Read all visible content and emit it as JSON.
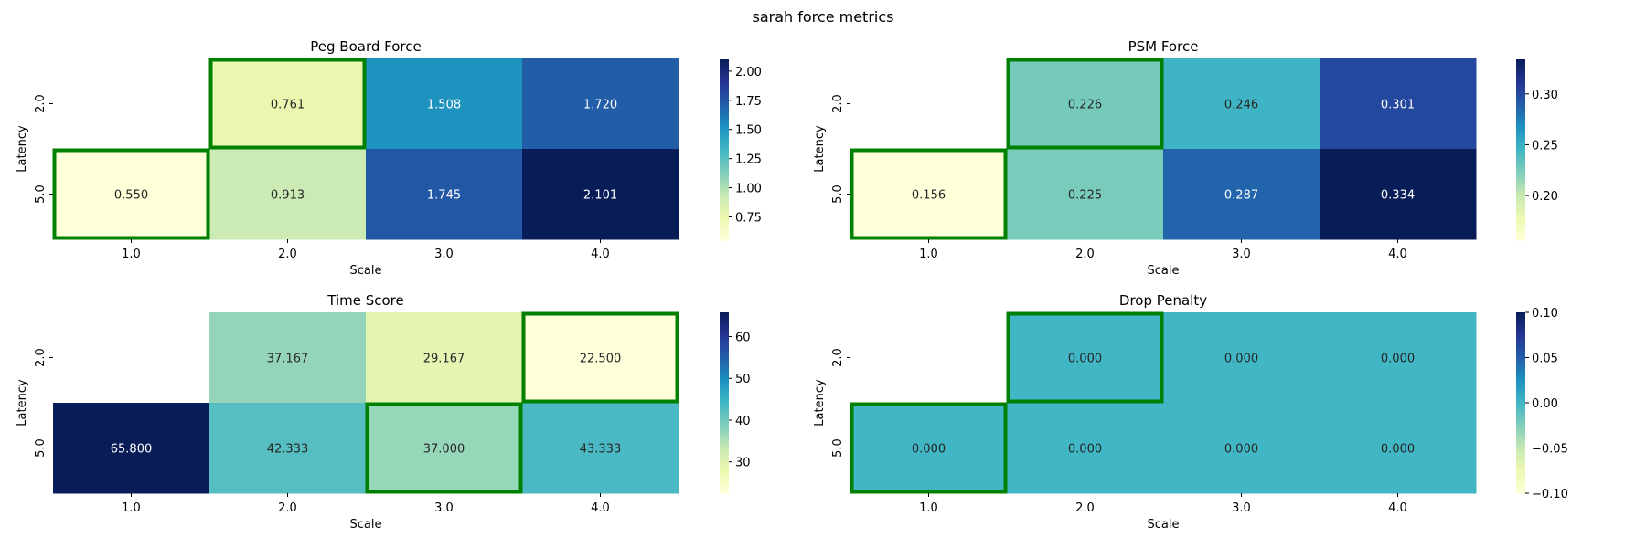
{
  "chart_data": {
    "suptitle": "sarah force metrics",
    "panels": [
      {
        "type": "heatmap",
        "title": "Peg Board Force",
        "xlabel": "Scale",
        "ylabel": "Latency",
        "x_categories": [
          "1.0",
          "2.0",
          "3.0",
          "4.0"
        ],
        "y_categories": [
          "2.0",
          "5.0"
        ],
        "values": [
          [
            null,
            0.761,
            1.508,
            1.72
          ],
          [
            0.55,
            0.913,
            1.745,
            2.101
          ]
        ],
        "labels": [
          [
            "",
            "0.761",
            "1.508",
            "1.720"
          ],
          [
            "0.550",
            "0.913",
            "1.745",
            "2.101"
          ]
        ],
        "color_range": [
          0.55,
          2.101
        ],
        "colorbar_ticks": [
          "0.75",
          "1.00",
          "1.25",
          "1.50",
          "1.75",
          "2.00"
        ],
        "colorbar_tick_values": [
          0.75,
          1.0,
          1.25,
          1.5,
          1.75,
          2.0
        ],
        "colorbar_range": [
          0.55,
          2.101
        ],
        "highlighted_cells": [
          [
            0,
            1
          ],
          [
            1,
            0
          ]
        ]
      },
      {
        "type": "heatmap",
        "title": "PSM Force",
        "xlabel": "Scale",
        "ylabel": "Latency",
        "x_categories": [
          "1.0",
          "2.0",
          "3.0",
          "4.0"
        ],
        "y_categories": [
          "2.0",
          "5.0"
        ],
        "values": [
          [
            null,
            0.226,
            0.246,
            0.301
          ],
          [
            0.156,
            0.225,
            0.287,
            0.334
          ]
        ],
        "labels": [
          [
            "",
            "0.226",
            "0.246",
            "0.301"
          ],
          [
            "0.156",
            "0.225",
            "0.287",
            "0.334"
          ]
        ],
        "color_range": [
          0.156,
          0.334
        ],
        "colorbar_ticks": [
          "0.20",
          "0.25",
          "0.30"
        ],
        "colorbar_tick_values": [
          0.2,
          0.25,
          0.3
        ],
        "colorbar_range": [
          0.156,
          0.334
        ],
        "highlighted_cells": [
          [
            0,
            1
          ],
          [
            1,
            0
          ]
        ]
      },
      {
        "type": "heatmap",
        "title": "Time Score",
        "xlabel": "Scale",
        "ylabel": "Latency",
        "x_categories": [
          "1.0",
          "2.0",
          "3.0",
          "4.0"
        ],
        "y_categories": [
          "2.0",
          "5.0"
        ],
        "values": [
          [
            null,
            37.167,
            29.167,
            22.5
          ],
          [
            65.8,
            42.333,
            37.0,
            43.333
          ]
        ],
        "labels": [
          [
            "",
            "37.167",
            "29.167",
            "22.500"
          ],
          [
            "65.800",
            "42.333",
            "37.000",
            "43.333"
          ]
        ],
        "color_range": [
          22.5,
          65.8
        ],
        "colorbar_ticks": [
          "30",
          "40",
          "50",
          "60"
        ],
        "colorbar_tick_values": [
          30,
          40,
          50,
          60
        ],
        "colorbar_range": [
          22.5,
          65.8
        ],
        "highlighted_cells": [
          [
            0,
            3
          ],
          [
            1,
            2
          ]
        ]
      },
      {
        "type": "heatmap",
        "title": "Drop Penalty",
        "xlabel": "Scale",
        "ylabel": "Latency",
        "x_categories": [
          "1.0",
          "2.0",
          "3.0",
          "4.0"
        ],
        "y_categories": [
          "2.0",
          "5.0"
        ],
        "values": [
          [
            null,
            0.0,
            0.0,
            0.0
          ],
          [
            0.0,
            0.0,
            0.0,
            0.0
          ]
        ],
        "labels": [
          [
            "",
            "0.000",
            "0.000",
            "0.000"
          ],
          [
            "0.000",
            "0.000",
            "0.000",
            "0.000"
          ]
        ],
        "color_range": [
          -0.1,
          0.1
        ],
        "colorbar_ticks": [
          "0.10",
          "0.05",
          "0.00",
          "−0.05",
          "−0.10"
        ],
        "colorbar_tick_values": [
          0.1,
          0.05,
          0.0,
          -0.05,
          -0.1
        ],
        "colorbar_range": [
          -0.1,
          0.1
        ],
        "highlighted_cells": [
          [
            0,
            1
          ],
          [
            1,
            0
          ]
        ]
      }
    ],
    "colormap": "YlGnBu",
    "colormap_stops": [
      "#ffffd9",
      "#edf8b1",
      "#c7e9b4",
      "#7fcdbb",
      "#41b6c4",
      "#1d91c0",
      "#225ea8",
      "#253494",
      "#081d58"
    ],
    "highlight_color": "#008000"
  }
}
